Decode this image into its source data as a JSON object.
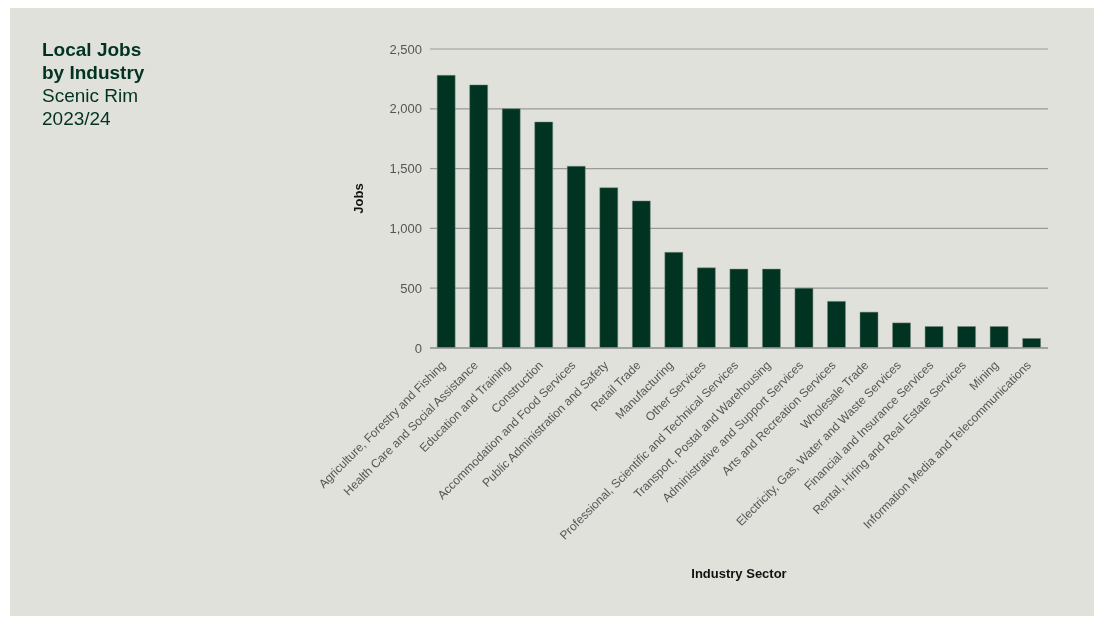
{
  "chart_data": {
    "type": "bar",
    "title": "Local Jobs by Industry",
    "subtitle": "Scenic Rim 2023/24",
    "xlabel": "Industry Sector",
    "ylabel": "Jobs",
    "categories": [
      "Agriculture, Forestry and Fishing",
      "Health Care and Social Assistance",
      "Education and Training",
      "Construction",
      "Accommodation and Food Services",
      "Public Administration and Safety",
      "Retail Trade",
      "Manufacturing",
      "Other Services",
      "Professional, Scientific and Technical Services",
      "Transport, Postal and Warehousing",
      "Administrative and Support Services",
      "Arts and Recreation Services",
      "Wholesale Trade",
      "Electricity, Gas, Water and Waste Services",
      "Financial and Insurance Services",
      "Rental, Hiring and Real Estate Services",
      "Mining",
      "Information Media and Telecommunications"
    ],
    "values": [
      2280,
      2200,
      2000,
      1890,
      1520,
      1340,
      1230,
      800,
      670,
      660,
      660,
      500,
      390,
      300,
      210,
      180,
      180,
      180,
      80
    ],
    "color": "#003322",
    "ylim": [
      0,
      2500
    ],
    "yticks": [
      0,
      500,
      {
        "value": 1000,
        "label": "1,000"
      },
      {
        "value": 1500,
        "label": "1,500"
      },
      {
        "value": 2000,
        "label": "2,000"
      },
      {
        "value": 2500,
        "label": "2,500"
      }
    ],
    "grid": "y"
  }
}
